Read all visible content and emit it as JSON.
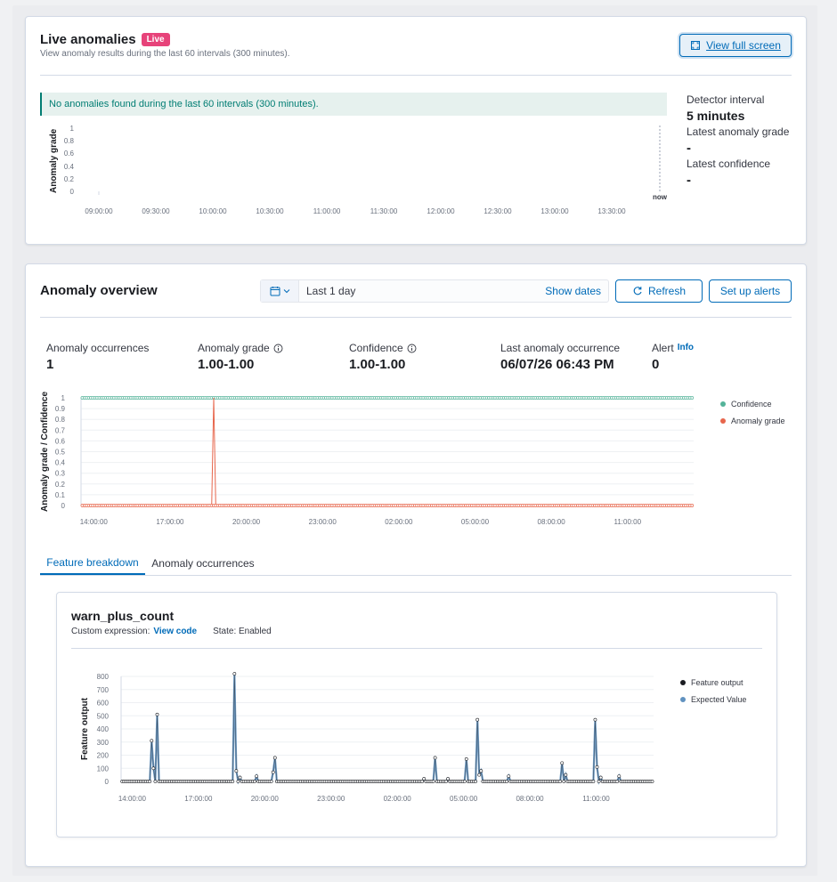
{
  "live": {
    "title": "Live anomalies",
    "badge": "Live",
    "subtitle": "View anomaly results during the last 60 intervals (300 minutes).",
    "fullscreen_label": "View full screen",
    "banner": "No anomalies found during the last 60 intervals (300 minutes).",
    "ylabel": "Anomaly grade",
    "yticks": [
      "1",
      "0.8",
      "0.6",
      "0.4",
      "0.2",
      "0"
    ],
    "xticks": [
      "09:00:00",
      "09:30:00",
      "10:00:00",
      "10:30:00",
      "11:00:00",
      "11:30:00",
      "12:00:00",
      "12:30:00",
      "13:00:00",
      "13:30:00"
    ],
    "now_label": "now",
    "detector_interval_label": "Detector interval",
    "detector_interval_value": "5 minutes",
    "latest_grade_label": "Latest anomaly grade",
    "latest_grade_value": "-",
    "latest_confidence_label": "Latest confidence",
    "latest_confidence_value": "-"
  },
  "overview": {
    "title": "Anomaly overview",
    "date_range": "Last 1 day",
    "show_dates": "Show dates",
    "refresh": "Refresh",
    "setup_alerts": "Set up alerts",
    "stats": {
      "occurrences_label": "Anomaly occurrences",
      "occurrences_value": "1",
      "grade_label": "Anomaly grade",
      "grade_value": "1.00-1.00",
      "confidence_label": "Confidence",
      "confidence_value": "1.00-1.00",
      "last_label": "Last anomaly occurrence",
      "last_value": "06/07/26 06:43 PM",
      "alert_label": "Alert",
      "alert_info": "Info",
      "alert_value": "0"
    },
    "legend": {
      "confidence": "Confidence",
      "grade": "Anomaly grade"
    },
    "colors": {
      "confidence": "#54b399",
      "grade": "#d36086"
    }
  },
  "tabs": [
    {
      "label": "Feature breakdown",
      "active": true
    },
    {
      "label": "Anomaly occurrences",
      "active": false
    }
  ],
  "feature": {
    "name": "warn_plus_count",
    "custom_expression_label": "Custom expression:",
    "view_code": "View code",
    "state": "State: Enabled",
    "legend_output": "Feature output",
    "legend_expected": "Expected Value"
  },
  "chart_data": [
    {
      "type": "line",
      "title": "",
      "ylabel": "Anomaly grade / Confidence",
      "ylim": [
        0,
        1
      ],
      "yticks": [
        0,
        0.1,
        0.2,
        0.3,
        0.4,
        0.5,
        0.6,
        0.7,
        0.8,
        0.9,
        1
      ],
      "xticks": [
        "14:00:00",
        "17:00:00",
        "20:00:00",
        "23:00:00",
        "02:00:00",
        "05:00:00",
        "08:00:00",
        "11:00:00"
      ],
      "x_range_hours": [
        13.5,
        37.6
      ],
      "series": [
        {
          "name": "Confidence",
          "constant": 1
        },
        {
          "name": "Anomaly grade",
          "constant": 0,
          "spikes": [
            {
              "x_hour": 18.72,
              "value": 1
            }
          ]
        }
      ],
      "legend": "right"
    },
    {
      "type": "line",
      "title": "",
      "ylabel": "Feature output",
      "ylim": [
        0,
        800
      ],
      "yticks": [
        0,
        100,
        200,
        300,
        400,
        500,
        600,
        700,
        800
      ],
      "xticks": [
        "14:00:00",
        "17:00:00",
        "20:00:00",
        "23:00:00",
        "02:00:00",
        "05:00:00",
        "08:00:00",
        "11:00:00"
      ],
      "x_range_hours": [
        13.5,
        37.6
      ],
      "series": [
        {
          "name": "Feature output",
          "spikes": [
            {
              "x_hour": 14.9,
              "value": 310
            },
            {
              "x_hour": 15.0,
              "value": 100
            },
            {
              "x_hour": 15.15,
              "value": 510
            },
            {
              "x_hour": 18.6,
              "value": 820
            },
            {
              "x_hour": 18.7,
              "value": 80
            },
            {
              "x_hour": 18.9,
              "value": 30
            },
            {
              "x_hour": 19.6,
              "value": 40
            },
            {
              "x_hour": 20.45,
              "value": 180
            },
            {
              "x_hour": 20.4,
              "value": 70
            },
            {
              "x_hour": 27.2,
              "value": 20
            },
            {
              "x_hour": 27.75,
              "value": 180
            },
            {
              "x_hour": 28.3,
              "value": 20
            },
            {
              "x_hour": 29.1,
              "value": 170
            },
            {
              "x_hour": 29.6,
              "value": 470
            },
            {
              "x_hour": 29.7,
              "value": 50
            },
            {
              "x_hour": 29.8,
              "value": 80
            },
            {
              "x_hour": 31.05,
              "value": 40
            },
            {
              "x_hour": 33.5,
              "value": 140
            },
            {
              "x_hour": 33.6,
              "value": 50
            },
            {
              "x_hour": 34.95,
              "value": 470
            },
            {
              "x_hour": 35.05,
              "value": 110
            },
            {
              "x_hour": 35.2,
              "value": 30
            },
            {
              "x_hour": 36.0,
              "value": 40
            }
          ]
        },
        {
          "name": "Expected Value",
          "follows": "Feature output"
        }
      ],
      "legend": "right"
    }
  ]
}
